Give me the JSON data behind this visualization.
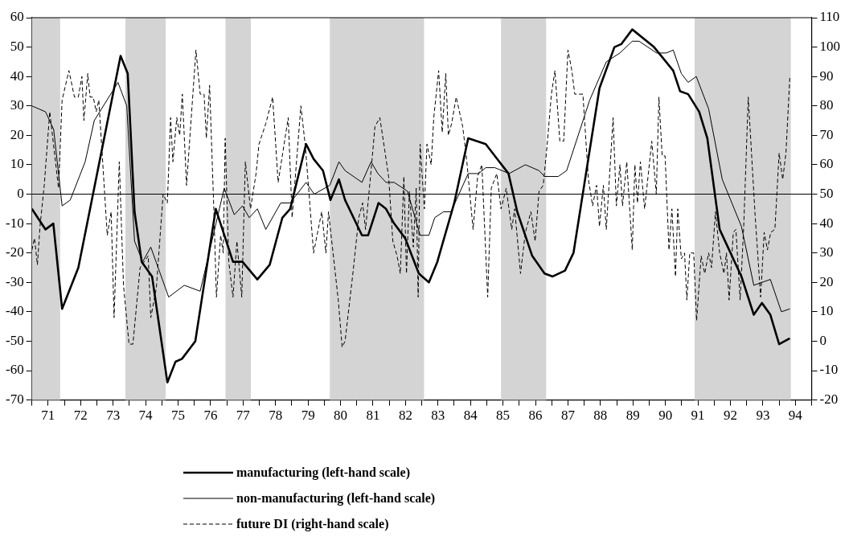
{
  "chart_data": {
    "type": "line",
    "ylim": [
      -70,
      60
    ],
    "yticks": [
      -70,
      -60,
      -50,
      -40,
      -30,
      -20,
      -10,
      0,
      10,
      20,
      30,
      40,
      50,
      60
    ],
    "y2lim": [
      -20,
      110
    ],
    "y2ticks": [
      -20,
      -10,
      0,
      10,
      20,
      30,
      40,
      50,
      60,
      70,
      80,
      90,
      100,
      110
    ],
    "xlim": [
      70.5,
      94.5
    ],
    "xticks": [
      {
        "value": 70.5,
        "label": null
      },
      71,
      {
        "value": 71.5,
        "label": null
      },
      72,
      {
        "value": 72.5,
        "label": null
      },
      73,
      {
        "value": 73.5,
        "label": null
      },
      74,
      {
        "value": 74.5,
        "label": null
      },
      75,
      {
        "value": 75.5,
        "label": null
      },
      76,
      {
        "value": 76.5,
        "label": null
      },
      77,
      {
        "value": 77.5,
        "label": null
      },
      78,
      {
        "value": 78.5,
        "label": null
      },
      79,
      {
        "value": 79.5,
        "label": null
      },
      80,
      {
        "value": 80.5,
        "label": null
      },
      81,
      {
        "value": 81.5,
        "label": null
      },
      82,
      {
        "value": 82.5,
        "label": null
      },
      83,
      {
        "value": 83.5,
        "label": null
      },
      84,
      {
        "value": 84.5,
        "label": null
      },
      85,
      {
        "value": 85.5,
        "label": null
      },
      86,
      {
        "value": 86.5,
        "label": null
      },
      87,
      {
        "value": 87.5,
        "label": null
      },
      88,
      {
        "value": 88.5,
        "label": null
      },
      89,
      {
        "value": 89.5,
        "label": null
      },
      90,
      {
        "value": 90.5,
        "label": null
      },
      91,
      {
        "value": 91.5,
        "label": null
      },
      92,
      {
        "value": 92.5,
        "label": null
      },
      93,
      {
        "value": 93.5,
        "label": null
      },
      94,
      {
        "value": 94.5,
        "label": null
      }
    ],
    "grid": false,
    "legend": "bottom",
    "marker": "none",
    "series": [
      {
        "name": "manufacturing (left-hand scale)",
        "color": "#000000",
        "line_style": "solid",
        "x": [
          70.5,
          70.92,
          71.16,
          71.43,
          71.93,
          73.23,
          73.45,
          73.66,
          73.88,
          74.2,
          74.67,
          74.92,
          75.12,
          75.53,
          76.16,
          76.69,
          76.98,
          77.44,
          77.82,
          78.21,
          78.45,
          78.94,
          79.17,
          79.46,
          79.69,
          79.95,
          80.14,
          80.66,
          80.85,
          81.17,
          81.4,
          81.65,
          81.99,
          82.41,
          82.72,
          82.98,
          83.5,
          83.93,
          84.47,
          84.75,
          85.17,
          85.44,
          85.9,
          86.28,
          86.53,
          86.91,
          87.17,
          87.97,
          88.43,
          88.64,
          88.98,
          89.65,
          90.24,
          90.45,
          90.7,
          91.04,
          91.29,
          91.67,
          92.34,
          92.72,
          92.97,
          93.23,
          93.5,
          93.83
        ],
        "values": [
          -5,
          -12,
          -10,
          -39,
          -25,
          47,
          41,
          -6,
          -23,
          -28,
          -64,
          -57,
          -56,
          -50,
          -5,
          -23,
          -23,
          -29,
          -24,
          -8,
          -5,
          17,
          12,
          8,
          -2,
          5,
          -2,
          -14,
          -14,
          -3,
          -5,
          -10,
          -15,
          -27,
          -30,
          -23,
          -3,
          19,
          17,
          13,
          7,
          -6,
          -21,
          -27,
          -28,
          -26,
          -20,
          36,
          50,
          51,
          56,
          50,
          42,
          35,
          34,
          28,
          19,
          -12,
          -28,
          -41,
          -37,
          -41,
          -51,
          -49
        ]
      },
      {
        "name": "non-manufacturing (left-hand scale)",
        "color": "#000000",
        "line_style": "solid",
        "x": [
          70.5,
          70.92,
          71.17,
          71.43,
          71.68,
          72.14,
          72.42,
          73.15,
          73.42,
          73.66,
          73.91,
          74.16,
          74.71,
          75.19,
          75.68,
          76.42,
          76.73,
          76.98,
          77.19,
          77.44,
          77.7,
          78.16,
          78.45,
          78.94,
          79.19,
          79.67,
          79.95,
          80.14,
          80.66,
          80.94,
          81.15,
          81.4,
          81.65,
          82.06,
          82.45,
          82.72,
          82.9,
          83.17,
          83.4,
          83.93,
          84.25,
          84.47,
          84.75,
          85.19,
          85.69,
          86.11,
          86.28,
          86.7,
          86.96,
          87.67,
          88.18,
          88.6,
          88.98,
          89.19,
          89.73,
          90.03,
          90.24,
          90.49,
          90.7,
          90.95,
          91.33,
          91.75,
          92.34,
          92.72,
          93.23,
          93.57,
          93.83
        ],
        "values": [
          30,
          28,
          22,
          -4,
          -2,
          11,
          25,
          38,
          30,
          -16,
          -23,
          -18,
          -35,
          -31,
          -33,
          2,
          -7,
          -4,
          -8,
          -5,
          -12,
          -3,
          -3,
          4,
          0,
          3,
          11,
          8,
          4,
          11,
          7,
          4,
          4,
          1,
          -14,
          -14,
          -8,
          -6,
          -6,
          7,
          7,
          9,
          9,
          7,
          10,
          8,
          6,
          6,
          8,
          32,
          45,
          48,
          52,
          52,
          48,
          48,
          49,
          41,
          38,
          40,
          29,
          5,
          -11,
          -31,
          -29,
          -40,
          -39
        ]
      },
      {
        "name": "future DI (right-hand scale)",
        "color": "#000000",
        "line_style": "dashed",
        "axis": "y2",
        "x": [
          70.5,
          70.58,
          70.67,
          70.75,
          70.88,
          71.05,
          71.32,
          71.43,
          71.64,
          71.81,
          71.93,
          72.04,
          72.1,
          72.22,
          72.29,
          72.39,
          72.48,
          72.56,
          72.82,
          72.94,
          73.03,
          73.19,
          73.32,
          73.49,
          73.61,
          73.83,
          74.08,
          74.16,
          74.33,
          74.54,
          74.67,
          74.77,
          74.84,
          74.96,
          75.05,
          75.13,
          75.26,
          75.55,
          75.68,
          75.8,
          75.87,
          75.97,
          76.1,
          76.18,
          76.31,
          76.39,
          76.45,
          76.56,
          76.69,
          76.81,
          76.96,
          77.07,
          77.23,
          77.4,
          77.49,
          77.7,
          77.91,
          78.08,
          78.39,
          78.51,
          78.78,
          78.92,
          79.17,
          79.42,
          79.55,
          79.63,
          79.93,
          80.05,
          80.14,
          80.39,
          80.56,
          80.68,
          80.77,
          80.94,
          81.06,
          81.21,
          81.36,
          81.48,
          81.61,
          81.74,
          81.84,
          81.95,
          82.03,
          82.12,
          82.24,
          82.33,
          82.39,
          82.45,
          82.58,
          82.66,
          82.79,
          82.87,
          83.02,
          83.13,
          83.24,
          83.32,
          83.42,
          83.56,
          83.76,
          83.88,
          84.08,
          84.22,
          84.35,
          84.53,
          84.64,
          84.81,
          84.94,
          85.1,
          85.27,
          85.36,
          85.54,
          85.69,
          85.86,
          85.99,
          86.11,
          86.24,
          86.37,
          86.49,
          86.6,
          86.75,
          86.87,
          87.0,
          87.12,
          87.21,
          87.46,
          87.63,
          87.76,
          87.88,
          87.97,
          88.09,
          88.18,
          88.39,
          88.49,
          88.6,
          88.68,
          88.81,
          88.98,
          89.06,
          89.14,
          89.23,
          89.36,
          89.58,
          89.72,
          89.8,
          89.9,
          89.99,
          90.11,
          90.2,
          90.31,
          90.38,
          90.49,
          90.59,
          90.66,
          90.75,
          90.87,
          90.96,
          91.1,
          91.21,
          91.33,
          91.42,
          91.54,
          91.67,
          91.8,
          91.88,
          91.96,
          92.09,
          92.17,
          92.3,
          92.41,
          92.55,
          92.76,
          92.93,
          93.04,
          93.14,
          93.24,
          93.37,
          93.5,
          93.61,
          93.71,
          93.83
        ],
        "values": [
          31,
          35,
          26,
          39,
          53,
          78,
          52,
          82,
          92,
          83,
          83,
          90,
          75,
          91,
          83,
          83,
          78,
          82,
          36,
          44,
          8,
          61,
          19,
          -1,
          -1,
          25,
          29,
          8,
          18,
          50,
          47,
          76,
          61,
          76,
          70,
          84,
          53,
          99,
          84,
          84,
          69,
          87,
          45,
          15,
          36,
          30,
          69,
          27,
          15,
          34,
          15,
          61,
          45,
          57,
          67,
          74,
          83,
          54,
          76,
          42,
          80,
          66,
          30,
          44,
          30,
          44,
          14,
          -2,
          0,
          24,
          42,
          47,
          38,
          58,
          73,
          76,
          65,
          56,
          34,
          29,
          23,
          56,
          23,
          51,
          32,
          52,
          15,
          67,
          45,
          67,
          60,
          76,
          92,
          71,
          91,
          70,
          74,
          83,
          73,
          62,
          38,
          56,
          60,
          15,
          52,
          57,
          45,
          52,
          38,
          45,
          23,
          37,
          44,
          34,
          51,
          53,
          68,
          84,
          92,
          68,
          68,
          99,
          92,
          84,
          84,
          55,
          46,
          53,
          39,
          53,
          38,
          76,
          46,
          60,
          46,
          61,
          31,
          60,
          47,
          61,
          45,
          68,
          50,
          83,
          63,
          63,
          31,
          45,
          22,
          45,
          28,
          30,
          14,
          30,
          30,
          7,
          29,
          23,
          30,
          25,
          44,
          30,
          23,
          30,
          14,
          37,
          38,
          14,
          39,
          83,
          43,
          15,
          37,
          31,
          37,
          38,
          64,
          55,
          64,
          90
        ]
      }
    ],
    "ref_lines": [
      {
        "axis": "y",
        "value": 0,
        "color": "#000000"
      }
    ],
    "bands": [
      {
        "axis": "x",
        "from": 70.5,
        "to": 71.37,
        "color": "#d4d4d4"
      },
      {
        "axis": "x",
        "from": 73.38,
        "to": 74.62,
        "color": "#d4d4d4"
      },
      {
        "axis": "x",
        "from": 76.46,
        "to": 77.24,
        "color": "#d4d4d4"
      },
      {
        "axis": "x",
        "from": 79.67,
        "to": 82.57,
        "color": "#d4d4d4"
      },
      {
        "axis": "x",
        "from": 84.94,
        "to": 86.33,
        "color": "#d4d4d4"
      },
      {
        "axis": "x",
        "from": 90.9,
        "to": 93.86,
        "color": "#d4d4d4"
      }
    ]
  }
}
